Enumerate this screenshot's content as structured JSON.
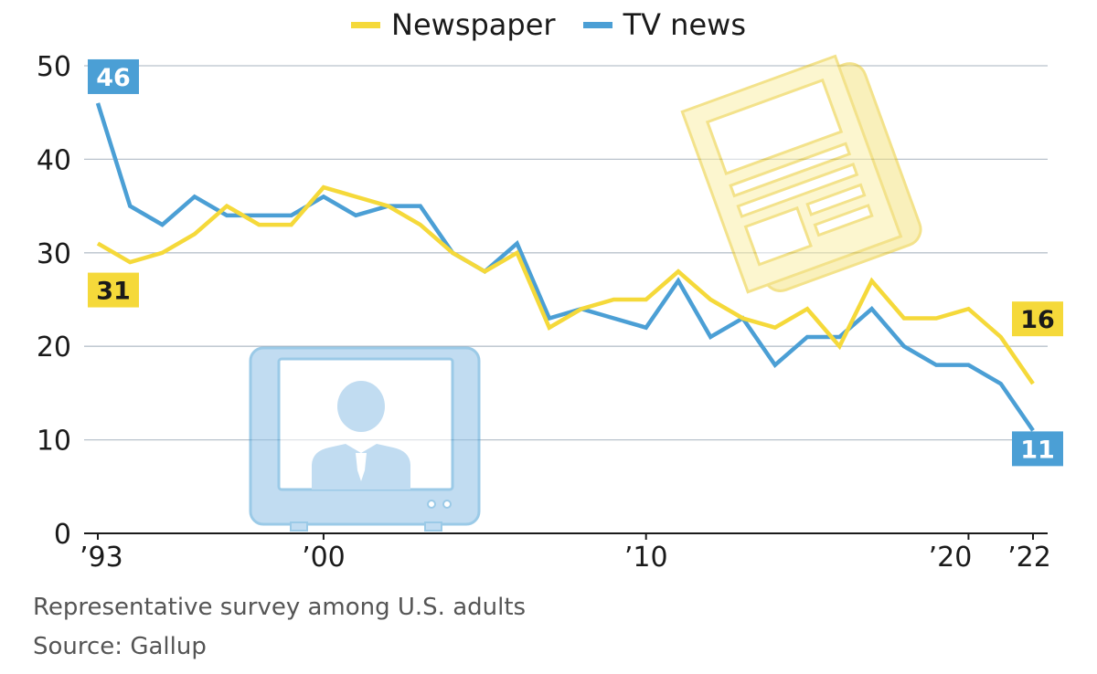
{
  "chart_data": {
    "type": "line",
    "title": "",
    "xlabel": "",
    "ylabel": "",
    "x": [
      1993,
      1994,
      1995,
      1996,
      1997,
      1998,
      1999,
      2000,
      2001,
      2002,
      2003,
      2004,
      2005,
      2006,
      2007,
      2008,
      2009,
      2010,
      2011,
      2012,
      2013,
      2014,
      2015,
      2016,
      2017,
      2018,
      2019,
      2020,
      2021,
      2022
    ],
    "xtick_values": [
      1993,
      2000,
      2010,
      2020,
      2022
    ],
    "xtick_labels": [
      "’93",
      "’00",
      "’10",
      "’20",
      "’22"
    ],
    "ylim": [
      0,
      50
    ],
    "yticks": [
      0,
      10,
      20,
      30,
      40,
      50
    ],
    "grid": true,
    "legend_position": "top-center",
    "series": [
      {
        "name": "Newspaper",
        "color": "#f5d93a",
        "values": [
          31,
          29,
          30,
          32,
          35,
          33,
          33,
          37,
          36,
          35,
          33,
          30,
          28,
          30,
          22,
          24,
          25,
          25,
          28,
          25,
          23,
          22,
          24,
          20,
          27,
          23,
          23,
          24,
          21,
          16
        ]
      },
      {
        "name": "TV news",
        "color": "#4b9fd5",
        "values": [
          46,
          35,
          33,
          36,
          34,
          34,
          34,
          36,
          34,
          35,
          35,
          30,
          28,
          31,
          23,
          24,
          23,
          22,
          27,
          21,
          23,
          18,
          21,
          21,
          24,
          20,
          18,
          18,
          16,
          11
        ]
      }
    ],
    "end_labels": [
      {
        "series": 0,
        "point": "first",
        "text": "31"
      },
      {
        "series": 0,
        "point": "last",
        "text": "16"
      },
      {
        "series": 1,
        "point": "first",
        "text": "46"
      },
      {
        "series": 1,
        "point": "last",
        "text": "11"
      }
    ]
  },
  "icons": {
    "tv": "tv-news-anchor-icon",
    "newspaper": "newspaper-icon"
  },
  "footer": {
    "note": "Representative survey among U.S. adults",
    "source": "Source: Gallup"
  }
}
